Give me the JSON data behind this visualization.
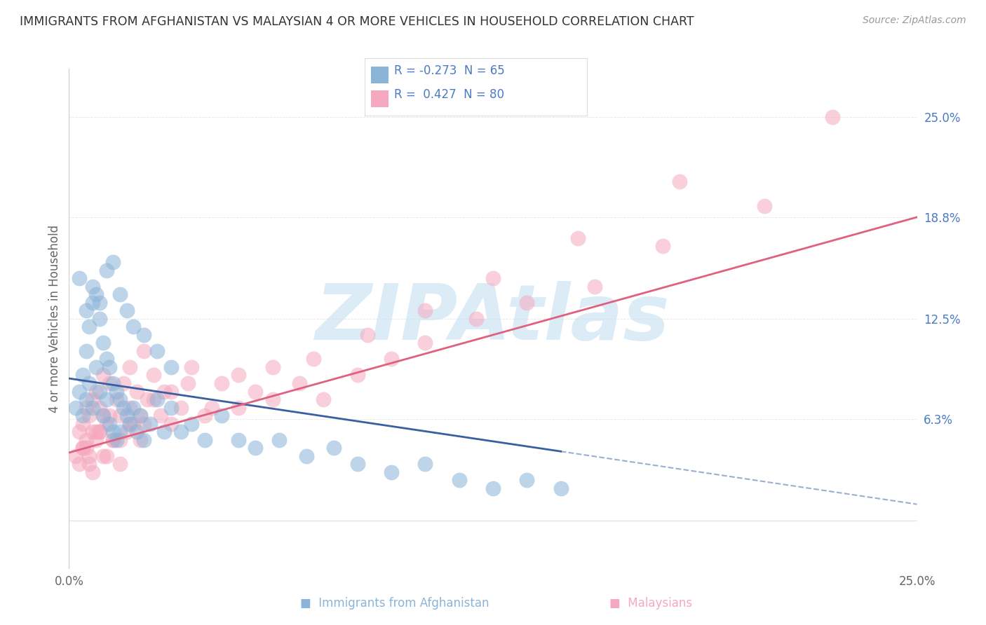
{
  "title": "IMMIGRANTS FROM AFGHANISTAN VS MALAYSIAN 4 OR MORE VEHICLES IN HOUSEHOLD CORRELATION CHART",
  "source": "Source: ZipAtlas.com",
  "ylabel": "4 or more Vehicles in Household",
  "xlim": [
    0.0,
    25.0
  ],
  "ylim": [
    -3.0,
    28.0
  ],
  "y_grid_lines": [
    0.0,
    6.3,
    12.5,
    18.8,
    25.0
  ],
  "right_y_ticks": [
    0.0,
    6.3,
    12.5,
    18.8,
    25.0
  ],
  "right_y_tick_labels": [
    "",
    "6.3%",
    "12.5%",
    "18.8%",
    "25.0%"
  ],
  "blue_scatter_x": [
    0.2,
    0.3,
    0.4,
    0.4,
    0.5,
    0.5,
    0.6,
    0.6,
    0.7,
    0.7,
    0.8,
    0.8,
    0.9,
    0.9,
    1.0,
    1.0,
    1.1,
    1.1,
    1.2,
    1.2,
    1.3,
    1.3,
    1.4,
    1.4,
    1.5,
    1.5,
    1.6,
    1.7,
    1.8,
    1.9,
    2.0,
    2.1,
    2.2,
    2.4,
    2.6,
    2.8,
    3.0,
    3.3,
    3.6,
    4.0,
    4.5,
    5.0,
    5.5,
    6.2,
    7.0,
    7.8,
    8.5,
    9.5,
    10.5,
    11.5,
    12.5,
    13.5,
    14.5,
    0.3,
    0.5,
    0.7,
    0.9,
    1.1,
    1.3,
    1.5,
    1.7,
    1.9,
    2.2,
    2.6,
    3.0
  ],
  "blue_scatter_y": [
    7.0,
    8.0,
    9.0,
    6.5,
    10.5,
    7.5,
    12.0,
    8.5,
    13.5,
    7.0,
    14.0,
    9.5,
    12.5,
    8.0,
    11.0,
    6.5,
    10.0,
    7.5,
    9.5,
    6.0,
    8.5,
    5.5,
    8.0,
    5.0,
    7.5,
    5.5,
    7.0,
    6.5,
    6.0,
    7.0,
    5.5,
    6.5,
    5.0,
    6.0,
    7.5,
    5.5,
    7.0,
    5.5,
    6.0,
    5.0,
    6.5,
    5.0,
    4.5,
    5.0,
    4.0,
    4.5,
    3.5,
    3.0,
    3.5,
    2.5,
    2.0,
    2.5,
    2.0,
    15.0,
    13.0,
    14.5,
    13.5,
    15.5,
    16.0,
    14.0,
    13.0,
    12.0,
    11.5,
    10.5,
    9.5
  ],
  "pink_scatter_x": [
    0.2,
    0.3,
    0.4,
    0.4,
    0.5,
    0.5,
    0.6,
    0.6,
    0.7,
    0.7,
    0.8,
    0.8,
    0.9,
    0.9,
    1.0,
    1.0,
    1.1,
    1.2,
    1.3,
    1.4,
    1.5,
    1.6,
    1.7,
    1.8,
    1.9,
    2.0,
    2.1,
    2.2,
    2.3,
    2.5,
    2.7,
    3.0,
    3.3,
    3.6,
    4.0,
    4.5,
    5.0,
    5.5,
    6.0,
    6.8,
    7.5,
    8.5,
    9.5,
    10.5,
    12.0,
    13.5,
    15.5,
    17.5,
    20.5,
    22.5,
    0.3,
    0.5,
    0.7,
    0.9,
    1.1,
    1.3,
    1.5,
    1.8,
    2.1,
    2.5,
    3.0,
    3.5,
    4.2,
    5.0,
    6.0,
    7.2,
    8.8,
    10.5,
    12.5,
    15.0,
    18.0,
    0.4,
    0.6,
    0.8,
    1.0,
    1.2,
    1.5,
    1.8,
    2.2,
    2.8
  ],
  "pink_scatter_y": [
    4.0,
    5.5,
    4.5,
    6.0,
    5.0,
    7.0,
    4.0,
    6.5,
    5.5,
    7.5,
    5.0,
    8.0,
    5.5,
    7.0,
    6.5,
    9.0,
    6.0,
    8.5,
    5.0,
    7.5,
    6.5,
    8.5,
    5.5,
    9.5,
    6.0,
    8.0,
    6.5,
    10.5,
    7.5,
    9.0,
    6.5,
    8.0,
    7.0,
    9.5,
    6.5,
    8.5,
    7.0,
    8.0,
    9.5,
    8.5,
    7.5,
    9.0,
    10.0,
    11.0,
    12.5,
    13.5,
    14.5,
    17.0,
    19.5,
    25.0,
    3.5,
    4.5,
    3.0,
    5.5,
    4.0,
    5.0,
    3.5,
    6.0,
    5.0,
    7.5,
    6.0,
    8.5,
    7.0,
    9.0,
    7.5,
    10.0,
    11.5,
    13.0,
    15.0,
    17.5,
    21.0,
    4.5,
    3.5,
    5.5,
    4.0,
    6.5,
    5.0,
    7.0,
    6.0,
    8.0
  ],
  "blue_line_x": [
    0.0,
    25.0
  ],
  "blue_line_y": [
    8.8,
    1.0
  ],
  "blue_solid_end_x": 14.5,
  "pink_line_x": [
    0.0,
    25.0
  ],
  "pink_line_y": [
    4.2,
    18.8
  ],
  "watermark": "ZIPAtlas",
  "background_color": "#ffffff",
  "title_color": "#333333",
  "blue_scatter_color": "#8ab4d8",
  "pink_scatter_color": "#f5a8bf",
  "blue_line_color": "#3a5fa0",
  "pink_line_color": "#e06080",
  "grid_color": "#e5e5e5",
  "right_tick_color": "#4a7bc4",
  "legend_r1_label": "R = -0.273  N = 65",
  "legend_r2_label": "R =  0.427  N = 80",
  "legend_bottom_1": "Immigrants from Afghanistan",
  "legend_bottom_2": "Malaysians"
}
